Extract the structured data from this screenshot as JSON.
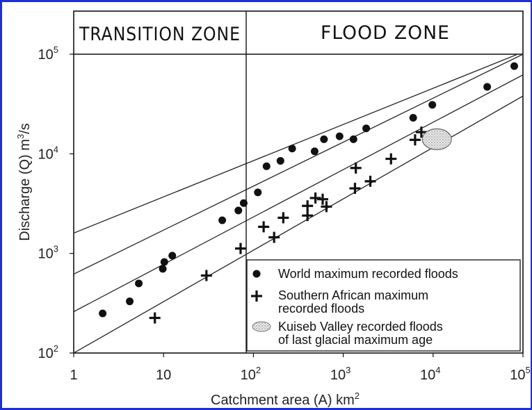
{
  "chart_data": {
    "type": "scatter",
    "title": "",
    "xlabel": "Catchment area (A) km",
    "xlabel_sup": "2",
    "ylabel": "Discharge (Q) m",
    "ylabel_sup": "3",
    "ylabel_suffix": "/s",
    "xscale": "log",
    "yscale": "log",
    "xlim": [
      1,
      100000
    ],
    "ylim": [
      100,
      100000
    ],
    "x_ticks": [
      {
        "base": "1",
        "exp": ""
      },
      {
        "base": "10",
        "exp": ""
      },
      {
        "base": "10",
        "exp": "2"
      },
      {
        "base": "10",
        "exp": "3"
      },
      {
        "base": "10",
        "exp": "4"
      },
      {
        "base": "10",
        "exp": "5"
      }
    ],
    "y_ticks": [
      {
        "base": "10",
        "exp": "2"
      },
      {
        "base": "10",
        "exp": "3"
      },
      {
        "base": "10",
        "exp": "4"
      },
      {
        "base": "10",
        "exp": "5"
      }
    ],
    "zones": [
      {
        "label": "TRANSITION ZONE",
        "x_range": [
          1,
          100
        ]
      },
      {
        "label": "FLOOD ZONE",
        "x_range": [
          100,
          100000
        ]
      }
    ],
    "envelope_lines": [
      {
        "x": [
          1,
          100000
        ],
        "y": [
          1600,
          105000
        ]
      },
      {
        "x": [
          1,
          100000
        ],
        "y": [
          620,
          100000
        ]
      },
      {
        "x": [
          1,
          100000
        ],
        "y": [
          260,
          62000
        ]
      },
      {
        "x": [
          1,
          100000
        ],
        "y": [
          100,
          38000
        ]
      }
    ],
    "legend": {
      "placement": "bottom-right",
      "entries": [
        {
          "marker": "circle",
          "line1": "World maximum recorded floods",
          "line2": ""
        },
        {
          "marker": "plus",
          "line1": "Southern African maximum",
          "line2": "recorded floods"
        },
        {
          "marker": "ellipse",
          "line1": "Kuiseb Valley recorded floods",
          "line2": "of last glacial maximum age"
        }
      ]
    },
    "series": [
      {
        "name": "World maximum recorded floods",
        "marker": "circle",
        "points": [
          [
            2.1,
            250
          ],
          [
            4.2,
            330
          ],
          [
            5.3,
            500
          ],
          [
            9.8,
            700
          ],
          [
            10.2,
            820
          ],
          [
            12.5,
            950
          ],
          [
            45,
            2150
          ],
          [
            68,
            2700
          ],
          [
            78,
            3200
          ],
          [
            112,
            4100
          ],
          [
            140,
            7500
          ],
          [
            200,
            8500
          ],
          [
            270,
            11300
          ],
          [
            480,
            10600
          ],
          [
            610,
            14000
          ],
          [
            910,
            15000
          ],
          [
            1300,
            14000
          ],
          [
            1800,
            18000
          ],
          [
            6000,
            23000
          ],
          [
            9800,
            31000
          ],
          [
            40000,
            47000
          ],
          [
            80000,
            76000
          ]
        ]
      },
      {
        "name": "Southern African maximum recorded floods",
        "marker": "plus",
        "points": [
          [
            8,
            225
          ],
          [
            30,
            600
          ],
          [
            72,
            1120
          ],
          [
            130,
            1850
          ],
          [
            170,
            1450
          ],
          [
            215,
            2280
          ],
          [
            400,
            2400
          ],
          [
            400,
            3000
          ],
          [
            490,
            3600
          ],
          [
            590,
            3500
          ],
          [
            650,
            2950
          ],
          [
            1350,
            4500
          ],
          [
            1380,
            7200
          ],
          [
            2000,
            5300
          ],
          [
            3400,
            8900
          ],
          [
            6300,
            13800
          ],
          [
            7400,
            16500
          ],
          [
            13500,
            14200
          ]
        ]
      },
      {
        "name": "Kuiseb Valley recorded floods of last glacial maximum age",
        "marker": "ellipse",
        "points": [
          [
            11000,
            14000
          ]
        ]
      }
    ]
  }
}
